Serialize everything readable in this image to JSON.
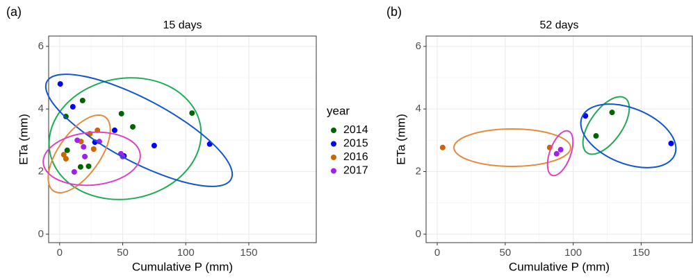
{
  "chart_data": [
    {
      "type": "scatter",
      "panel_label": "(a)",
      "title": "15 days",
      "xlabel": "Cumulative P (mm)",
      "ylabel": "ETa (mm)",
      "xlim": [
        -8.7,
        203.5
      ],
      "ylim": [
        -0.27,
        6.33
      ],
      "xticks": [
        0,
        50,
        100,
        150
      ],
      "yticks": [
        0,
        2,
        4,
        6
      ],
      "grid": true,
      "legend_title": "year",
      "series": [
        {
          "name": "2014",
          "color": "#006400",
          "x": [
            5,
            18.2,
            49,
            58,
            105,
            6,
            16.6,
            23
          ],
          "y": [
            3.76,
            4.27,
            3.85,
            3.43,
            3.87,
            2.68,
            2.15,
            2.17
          ]
        },
        {
          "name": "2015",
          "color": "#0000ff",
          "x": [
            0.5,
            10.5,
            43.6,
            28,
            75,
            119,
            51
          ],
          "y": [
            4.8,
            4.07,
            3.32,
            2.94,
            2.83,
            2.88,
            2.5
          ]
        },
        {
          "name": "2016",
          "color": "#cc6600",
          "x": [
            3.3,
            17,
            24,
            30,
            27,
            5
          ],
          "y": [
            2.54,
            2.96,
            3.21,
            3.32,
            2.72,
            2.41
          ]
        },
        {
          "name": "2017",
          "color": "#a020f0",
          "x": [
            14,
            19,
            31.5,
            48.6,
            20,
            11.6,
            50
          ],
          "y": [
            3.0,
            2.79,
            2.96,
            2.57,
            2.48,
            1.99,
            2.48
          ]
        }
      ]
    },
    {
      "type": "scatter",
      "panel_label": "(b)",
      "title": "52 days",
      "xlabel": "Cumulative P (mm)",
      "ylabel": "ETa (mm)",
      "xlim": [
        -8.2,
        187.6
      ],
      "ylim": [
        -0.27,
        6.33
      ],
      "xticks": [
        0,
        50,
        100,
        150
      ],
      "yticks": [
        0,
        2,
        4,
        6
      ],
      "grid": true,
      "series": [
        {
          "color": "#006400",
          "x": [
            116.8,
            128.6
          ],
          "y": [
            3.14,
            3.89
          ]
        },
        {
          "color": "#0000ff",
          "x": [
            109,
            172
          ],
          "y": [
            3.78,
            2.9
          ]
        },
        {
          "color": "#cc6600",
          "x": [
            4,
            82.7
          ],
          "y": [
            2.77,
            2.77
          ]
        },
        {
          "color": "#a020f0",
          "x": [
            87.8,
            90.8
          ],
          "y": [
            2.57,
            2.7
          ]
        }
      ]
    }
  ]
}
